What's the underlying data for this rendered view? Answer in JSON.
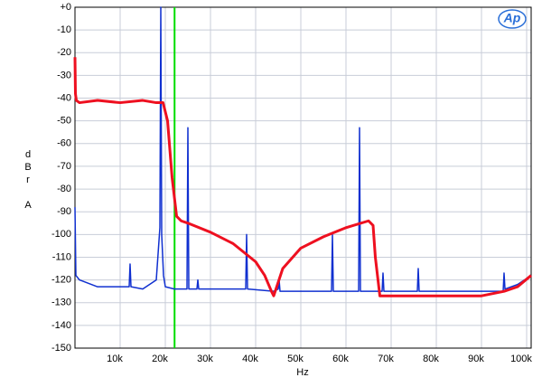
{
  "chart_data": {
    "type": "line",
    "xlabel": "Hz",
    "ylabel": "dBr A",
    "logo": "Ap",
    "xlim": [
      0,
      101000
    ],
    "ylim": [
      -150,
      0
    ],
    "xticks": [
      {
        "value": 10000,
        "label": "10k"
      },
      {
        "value": 20000,
        "label": "20k"
      },
      {
        "value": 30000,
        "label": "30k"
      },
      {
        "value": 40000,
        "label": "40k"
      },
      {
        "value": 50000,
        "label": "50k"
      },
      {
        "value": 60000,
        "label": "60k"
      },
      {
        "value": 70000,
        "label": "70k"
      },
      {
        "value": 80000,
        "label": "80k"
      },
      {
        "value": 90000,
        "label": "90k"
      },
      {
        "value": 100000,
        "label": "100k"
      }
    ],
    "yticks": [
      {
        "value": 0,
        "label": "+0"
      },
      -10,
      -20,
      -30,
      -40,
      -50,
      -60,
      -70,
      -80,
      -90,
      -100,
      -110,
      -120,
      -130,
      -140,
      -150
    ],
    "grid": true,
    "vline": {
      "x": 22050,
      "color": "#00dd00"
    },
    "series": [
      {
        "color": "#1030d0",
        "width": 1.5,
        "x": [
          0,
          200,
          1000,
          5000,
          10000,
          12000,
          12200,
          12400,
          15000,
          18000,
          18800,
          19000,
          19200,
          19600,
          20000,
          22000,
          24800,
          25000,
          25200,
          27000,
          27200,
          27400,
          30000,
          37800,
          38000,
          38200,
          44000,
          45000,
          45200,
          45400,
          50000,
          56800,
          57000,
          57200,
          62800,
          63000,
          63200,
          66000,
          68000,
          68200,
          68400,
          75800,
          76000,
          76200,
          80000,
          90000,
          94800,
          95000,
          95200,
          98000,
          101000
        ],
        "values": [
          -88,
          -118,
          -120,
          -123,
          -123,
          -123,
          -113,
          -123,
          -124,
          -120,
          -97,
          0,
          -100,
          -118,
          -123,
          -124,
          -124,
          -53,
          -124,
          -124,
          -120,
          -124,
          -124,
          -124,
          -100,
          -124,
          -125,
          -124,
          -120,
          -125,
          -125,
          -125,
          -100,
          -125,
          -125,
          -53,
          -125,
          -125,
          -125,
          -117,
          -125,
          -125,
          -115,
          -125,
          -125,
          -125,
          -125,
          -117,
          -124,
          -122,
          -118
        ]
      },
      {
        "color": "#ee1020",
        "width": 3,
        "x": [
          0,
          100,
          300,
          1000,
          5000,
          10000,
          15000,
          18000,
          19500,
          20500,
          21500,
          22500,
          23500,
          25000,
          30000,
          35000,
          40000,
          42000,
          43500,
          44000,
          44500,
          46000,
          50000,
          55000,
          60000,
          65000,
          66000,
          66500,
          67500,
          70000,
          80000,
          90000,
          95000,
          98000,
          101000
        ],
        "values": [
          -22,
          -38,
          -41,
          -42,
          -41,
          -42,
          -41,
          -42,
          -42,
          -50,
          -75,
          -92,
          -94,
          -95,
          -99,
          -104,
          -112,
          -118,
          -125,
          -127,
          -124,
          -115,
          -106,
          -101,
          -97,
          -94,
          -96,
          -110,
          -127,
          -127,
          -127,
          -127,
          -125,
          -123,
          -118
        ]
      }
    ]
  }
}
